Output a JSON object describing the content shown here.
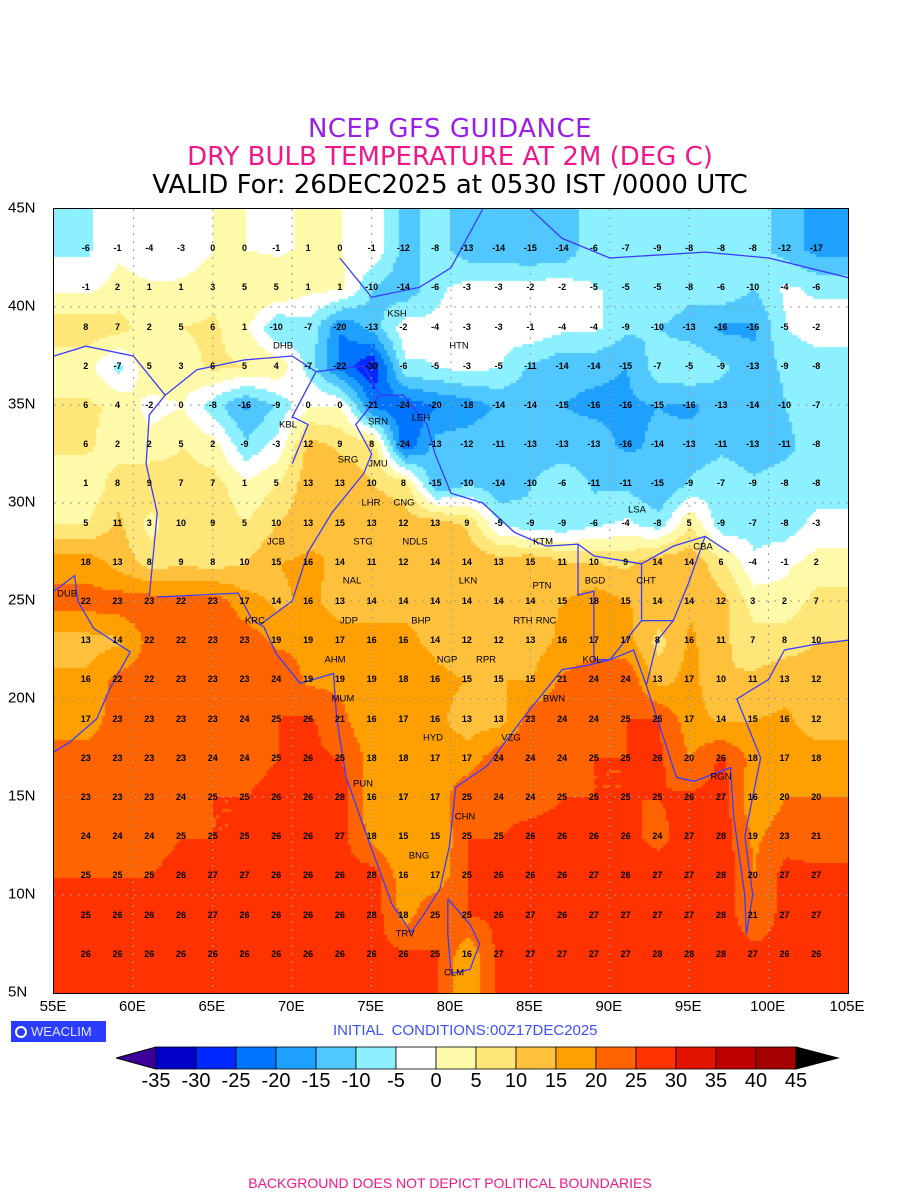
{
  "header": {
    "title": "NCEP GFS GUIDANCE",
    "subtitle": "DRY BULB TEMPERATURE AT 2M (DEG C)",
    "valid": "VALID For: 26DEC2025 at 0530 IST /0000 UTC"
  },
  "axes": {
    "lat_labels": [
      "45N",
      "40N",
      "35N",
      "30N",
      "25N",
      "20N",
      "15N",
      "10N",
      "5N"
    ],
    "lat_values": [
      45,
      40,
      35,
      30,
      25,
      20,
      15,
      10,
      5
    ],
    "lon_labels": [
      "55E",
      "60E",
      "65E",
      "70E",
      "75E",
      "80E",
      "85E",
      "90E",
      "95E",
      "100E",
      "105E"
    ],
    "lon_values": [
      55,
      60,
      65,
      70,
      75,
      80,
      85,
      90,
      95,
      100,
      105
    ],
    "lat_range": [
      5,
      45
    ],
    "lon_range": [
      55,
      105
    ]
  },
  "grid": {
    "lats": [
      43,
      41,
      39,
      37,
      35,
      33,
      31,
      29,
      27,
      25,
      23,
      21,
      19,
      17,
      15,
      13,
      11,
      9,
      7
    ],
    "lon_start": 57,
    "lon_step": 2,
    "rows": [
      [
        -6,
        -1,
        -4,
        -3,
        0,
        0,
        -1,
        1,
        0,
        -1,
        -12,
        -8,
        -13,
        -14,
        -15,
        -14,
        -6,
        -7,
        -9,
        -8,
        -8,
        -8,
        -12,
        -17
      ],
      [
        -1,
        2,
        1,
        1,
        3,
        5,
        5,
        1,
        1,
        -10,
        -14,
        -6,
        -3,
        -3,
        -2,
        -2,
        -5,
        -5,
        -5,
        -8,
        -6,
        -10,
        -4,
        -6
      ],
      [
        8,
        7,
        2,
        5,
        6,
        1,
        -10,
        -7,
        -20,
        -13,
        -2,
        -4,
        -3,
        -3,
        -1,
        -4,
        -4,
        -9,
        -10,
        -13,
        -16,
        -16,
        -5,
        -2
      ],
      [
        2,
        -7,
        5,
        3,
        6,
        5,
        4,
        -7,
        -22,
        -30,
        -6,
        -5,
        -3,
        -5,
        -11,
        -14,
        -14,
        -15,
        -7,
        -5,
        -9,
        -13,
        -9,
        -8
      ],
      [
        6,
        4,
        -2,
        0,
        -8,
        -16,
        -9,
        0,
        0,
        -21,
        -24,
        -20,
        -18,
        -14,
        -14,
        -15,
        -16,
        -16,
        -15,
        -16,
        -13,
        -14,
        -10,
        -7
      ],
      [
        6,
        2,
        2,
        5,
        2,
        -9,
        -3,
        12,
        9,
        8,
        -24,
        -13,
        -12,
        -11,
        -13,
        -13,
        -13,
        -16,
        -14,
        -13,
        -11,
        -13,
        -11,
        -8
      ],
      [
        1,
        8,
        9,
        7,
        7,
        1,
        5,
        13,
        13,
        10,
        8,
        -15,
        -10,
        -14,
        -10,
        -6,
        -11,
        -11,
        -15,
        -9,
        -7,
        -9,
        -8,
        -8
      ],
      [
        5,
        11,
        3,
        10,
        9,
        5,
        10,
        13,
        15,
        13,
        12,
        13,
        9,
        -5,
        -9,
        -9,
        -6,
        -4,
        -8,
        5,
        -9,
        -7,
        -8,
        -3
      ],
      [
        18,
        13,
        8,
        9,
        8,
        10,
        15,
        16,
        14,
        11,
        12,
        14,
        14,
        13,
        15,
        11,
        10,
        9,
        14,
        14,
        6,
        -4,
        -1,
        2
      ],
      [
        22,
        23,
        23,
        22,
        23,
        17,
        14,
        16,
        13,
        14,
        14,
        14,
        14,
        14,
        14,
        15,
        18,
        15,
        14,
        14,
        12,
        3,
        2,
        7
      ],
      [
        13,
        14,
        22,
        22,
        23,
        23,
        19,
        19,
        17,
        16,
        16,
        14,
        12,
        12,
        13,
        16,
        17,
        17,
        8,
        16,
        11,
        7,
        8,
        10
      ],
      [
        16,
        22,
        22,
        23,
        23,
        23,
        24,
        19,
        19,
        19,
        18,
        16,
        15,
        15,
        15,
        21,
        24,
        24,
        13,
        17,
        10,
        11,
        13,
        12
      ],
      [
        17,
        23,
        23,
        23,
        23,
        24,
        25,
        26,
        21,
        16,
        17,
        16,
        13,
        13,
        23,
        24,
        24,
        25,
        25,
        17,
        14,
        15,
        16,
        12
      ],
      [
        23,
        23,
        23,
        23,
        24,
        24,
        25,
        26,
        25,
        18,
        18,
        17,
        17,
        24,
        24,
        24,
        25,
        25,
        26,
        20,
        26,
        18,
        17,
        18
      ],
      [
        23,
        23,
        23,
        24,
        25,
        25,
        26,
        26,
        28,
        16,
        17,
        17,
        25,
        24,
        24,
        25,
        25,
        25,
        25,
        26,
        27,
        16,
        20,
        20
      ],
      [
        24,
        24,
        24,
        25,
        25,
        25,
        26,
        26,
        27,
        18,
        15,
        15,
        25,
        25,
        26,
        26,
        26,
        26,
        24,
        27,
        28,
        19,
        23,
        21
      ],
      [
        25,
        25,
        25,
        26,
        27,
        27,
        26,
        26,
        26,
        28,
        16,
        17,
        25,
        26,
        26,
        26,
        27,
        26,
        27,
        27,
        28,
        20,
        27,
        27
      ],
      [
        25,
        26,
        26,
        26,
        27,
        26,
        26,
        26,
        26,
        28,
        18,
        25,
        25,
        26,
        27,
        26,
        27,
        27,
        27,
        27,
        28,
        21,
        27,
        27
      ],
      [
        26,
        26,
        26,
        26,
        26,
        26,
        26,
        26,
        26,
        26,
        26,
        25,
        16,
        27,
        27,
        27,
        27,
        27,
        28,
        28,
        28,
        27,
        26,
        26
      ]
    ]
  },
  "cities": [
    "DHB",
    "KSH",
    "HTN",
    "KBL",
    "SRN",
    "LEH",
    "JMU",
    "SRG",
    "LHR",
    "CNG",
    "STG",
    "NAL",
    "JCB",
    "NDLS",
    "KTM",
    "LKN",
    "JDP",
    "BGD",
    "CHT",
    "CBA",
    "LSA",
    "DUB",
    "KRC",
    "PTN",
    "RTH",
    "AHM",
    "BHP",
    "RNC",
    "KOL",
    "NGP",
    "RPR",
    "BWN",
    "MUM",
    "HYD",
    "VZG",
    "RGN",
    "PUN",
    "CHN",
    "BNG",
    "TRV",
    "CLM"
  ],
  "branding": {
    "logo_text": "WEACLIM"
  },
  "initial_conditions": "INITIAL  CONDITIONS:00Z17DEC2025",
  "colorbar": {
    "labels": [
      "-35",
      "-30",
      "-25",
      "-20",
      "-15",
      "-10",
      "-5",
      "0",
      "5",
      "10",
      "15",
      "20",
      "25",
      "30",
      "35",
      "40",
      "45"
    ],
    "levels": [
      -35,
      -30,
      -25,
      -20,
      -15,
      -10,
      -5,
      0,
      5,
      10,
      15,
      20,
      25,
      30,
      35,
      40,
      45
    ],
    "colors": [
      "#3a0098",
      "#0000c8",
      "#0028ff",
      "#0073ff",
      "#1ea0ff",
      "#50c8ff",
      "#8cf0ff",
      "#ffffff",
      "#fffaaa",
      "#ffe678",
      "#ffc03c",
      "#ffa000",
      "#ff6400",
      "#ff3200",
      "#e11400",
      "#c00000",
      "#a50000",
      "#000000"
    ]
  },
  "footer": "BACKGROUND DOES NOT DEPICT POLITICAL BOUNDARIES",
  "style": {
    "coast_color": "#3c3cff"
  }
}
